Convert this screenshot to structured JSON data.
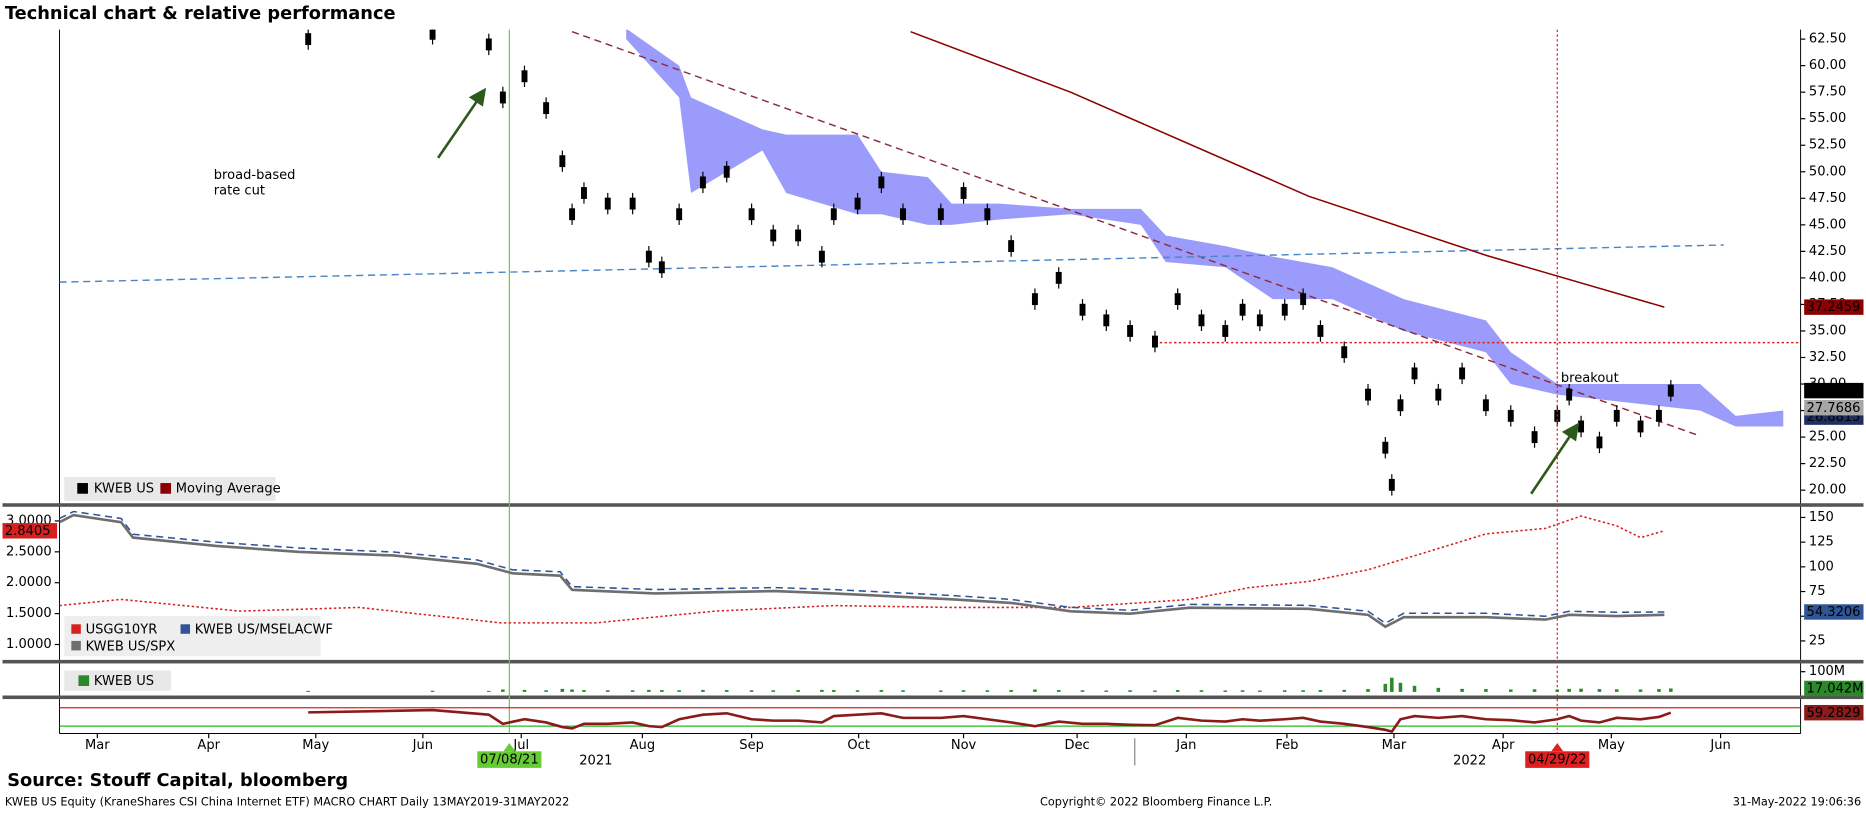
{
  "title": "Technical chart & relative performance",
  "source": "Source: Stouff Capital, bloomberg",
  "footer": [
    "KWEB US Equity (KraneShares CSI China Internet ETF) MACRO CHART  Daily 13MAY2019-31MAY2022",
    "Copyright© 2022 Bloomberg Finance L.P.",
    "31-May-2022 19:06:36"
  ],
  "chart_data": [
    {
      "type": "candlestick",
      "xlim": [
        0,
        16.1
      ],
      "xticks": [
        {
          "value": 0.35,
          "label": "Mar"
        },
        {
          "value": 1.38,
          "label": "Apr"
        },
        {
          "value": 2.37,
          "label": "May"
        },
        {
          "value": 3.36,
          "label": "Jun"
        },
        {
          "value": 4.27,
          "label": "Jul"
        },
        {
          "value": 5.39,
          "label": "Aug"
        },
        {
          "value": 6.4,
          "label": "Sep"
        },
        {
          "value": 7.39,
          "label": "Oct"
        },
        {
          "value": 8.36,
          "label": "Nov"
        },
        {
          "value": 9.41,
          "label": "Dec"
        },
        {
          "value": 10.42,
          "label": "Jan"
        },
        {
          "value": 11.35,
          "label": "Feb"
        },
        {
          "value": 12.34,
          "label": "Mar"
        },
        {
          "value": 13.35,
          "label": "Apr"
        },
        {
          "value": 14.35,
          "label": "May"
        },
        {
          "value": 15.36,
          "label": "Jun"
        }
      ],
      "year_labels": [
        {
          "x": 4.96,
          "label": "2021"
        },
        {
          "x": 13.04,
          "label": "2022"
        }
      ],
      "ylim": [
        18.88,
        63.39
      ],
      "yticks": [
        {
          "value": 20,
          "label": "20.00"
        },
        {
          "value": 22.5,
          "label": "22.50"
        },
        {
          "value": 25,
          "label": "25.00"
        },
        {
          "value": 27.5,
          "label": "27.50"
        },
        {
          "value": 30,
          "label": "30.00"
        },
        {
          "value": 32.5,
          "label": "32.50"
        },
        {
          "value": 35,
          "label": "35.00"
        },
        {
          "value": 37.5,
          "label": "37.50"
        },
        {
          "value": 40,
          "label": "40.00"
        },
        {
          "value": 42.5,
          "label": "42.50"
        },
        {
          "value": 45,
          "label": "45.00"
        },
        {
          "value": 47.5,
          "label": "47.50"
        },
        {
          "value": 50,
          "label": "50.00"
        },
        {
          "value": 52.5,
          "label": "52.50"
        },
        {
          "value": 55,
          "label": "55.00"
        },
        {
          "value": 57.5,
          "label": "57.50"
        },
        {
          "value": 60,
          "label": "60.00"
        },
        {
          "value": 62.5,
          "label": "62.50"
        }
      ],
      "series": [
        {
          "name": "KWEB US",
          "color": "#000000",
          "last_tag": true,
          "x": [
            2.3,
            3.45,
            3.97,
            4.1,
            4.3,
            4.5,
            4.65,
            4.74,
            4.85,
            5.07,
            5.3,
            5.45,
            5.57,
            5.73,
            5.95,
            6.17,
            6.4,
            6.6,
            6.83,
            7.05,
            7.16,
            7.38,
            7.6,
            7.8,
            8.15,
            8.36,
            8.58,
            8.8,
            9.02,
            9.24,
            9.46,
            9.68,
            9.9,
            10.13,
            10.34,
            10.56,
            10.78,
            10.94,
            11.1,
            11.33,
            11.5,
            11.66,
            11.88,
            12.1,
            12.26,
            12.32,
            12.4,
            12.53,
            12.75,
            12.97,
            13.19,
            13.42,
            13.64,
            13.85,
            13.96,
            14.07,
            14.24,
            14.4,
            14.62,
            14.79,
            14.9
          ],
          "values": [
            62.5,
            63,
            62,
            57,
            59,
            56,
            51,
            46,
            48,
            47,
            47,
            42,
            41,
            46,
            49,
            50,
            46,
            44,
            44,
            42,
            46,
            47,
            49,
            46,
            46,
            48,
            46,
            43,
            38,
            40,
            37,
            36,
            35,
            34,
            38,
            36,
            35,
            37,
            36,
            37,
            38,
            35,
            33,
            29,
            24,
            20.5,
            28,
            31,
            29,
            31,
            28,
            27,
            25,
            27,
            29,
            26,
            24.5,
            27,
            26,
            27,
            29.38
          ]
        },
        {
          "name": "Moving Average",
          "color": "#8b0000",
          "last_tag": true,
          "x": [
            7.87,
            9.35,
            11.55,
            13.2,
            14.84
          ],
          "values": [
            63.2,
            57.5,
            47.7,
            42.1,
            37.2459
          ]
        }
      ],
      "cloud": {
        "color": "#9b9bfb",
        "x": [
          5.24,
          5.73,
          5.84,
          6.5,
          6.72,
          7.38,
          7.6,
          8.03,
          8.25,
          8.69,
          9.35,
          10.0,
          10.23,
          10.78,
          11.22,
          11.77,
          12.43,
          13.19,
          13.42,
          13.85,
          15.17,
          15.5,
          15.94
        ],
        "upper": [
          63.5,
          60,
          57,
          54,
          53.5,
          53.5,
          50,
          49.5,
          47,
          47,
          46.5,
          46.5,
          44,
          43,
          42,
          41,
          38,
          36,
          33,
          30,
          30,
          27,
          27.5
        ],
        "lower": [
          62.5,
          57,
          48,
          52,
          48,
          46,
          46,
          45,
          45,
          45.5,
          46,
          45,
          41.5,
          41,
          38,
          38,
          35,
          33,
          30,
          29,
          27.5,
          26,
          26
        ]
      },
      "lines": [
        {
          "color": "#8b2b3a",
          "style": "dashed",
          "x": [
            4.74,
            15.17
          ],
          "y": [
            63.2,
            25.1
          ]
        },
        {
          "color": "#4a86c6",
          "style": "dashed",
          "x": [
            0,
            15.39
          ],
          "y": [
            39.6,
            43.1
          ]
        },
        {
          "color": "#e02020",
          "style": "dotted",
          "x": [
            10.13,
            16.1
          ],
          "y": [
            33.9,
            33.9
          ]
        }
      ],
      "vlines": [
        {
          "x": 4.16,
          "label": "07/08/21",
          "color": "#66cc33",
          "text_color": "#000000",
          "style": "solid"
        },
        {
          "x": 13.85,
          "label": "04/29/22",
          "color": "#e02020",
          "text_color": "#ffffff",
          "style": "dotted"
        }
      ],
      "tags": [
        {
          "value": 26.8815,
          "color": "#1f2f5f",
          "text_color": "#ffffff"
        },
        {
          "value": 27.7686,
          "color": "#a6a6a6",
          "text_color": "#000000"
        }
      ],
      "annotations": [
        "broad-based",
        "rate cut",
        "breakout"
      ]
    },
    {
      "type": "line",
      "ylim": [
        0.77,
        3.21
      ],
      "yticks": [
        {
          "value": 1,
          "label": "1.0000"
        },
        {
          "value": 1.5,
          "label": "1.5000"
        },
        {
          "value": 2,
          "label": "2.0000"
        },
        {
          "value": 2.5,
          "label": "2.5000"
        },
        {
          "value": 3,
          "label": "3.0000"
        }
      ],
      "y2lim": [
        7,
        159.6
      ],
      "y2ticks": [
        25,
        50,
        75,
        100,
        125,
        150
      ],
      "series": [
        {
          "name": "USGG10YR",
          "color": "#d62020",
          "style": "dotted",
          "axis": "y",
          "last_tag": true,
          "x": [
            0,
            0.57,
            1.67,
            2.77,
            4.08,
            4.96,
            6.06,
            7.16,
            8.25,
            9.35,
            10.45,
            11.0,
            11.55,
            12.1,
            12.65,
            13.19,
            13.74,
            14.07,
            14.4,
            14.62,
            14.84
          ],
          "values": [
            1.63,
            1.73,
            1.54,
            1.6,
            1.35,
            1.35,
            1.54,
            1.63,
            1.6,
            1.6,
            1.73,
            1.92,
            2.02,
            2.21,
            2.5,
            2.79,
            2.88,
            3.08,
            2.92,
            2.73,
            2.8405
          ]
        },
        {
          "name": "KWEB US/MSELACWF",
          "color": "#2f5597",
          "style": "dashed",
          "axis": "y2",
          "last_tag": true,
          "x": [
            0,
            0.13,
            0.57,
            0.68,
            1.45,
            2.22,
            3.09,
            3.86,
            4.19,
            4.63,
            4.74,
            5.51,
            6.61,
            7.16,
            8.25,
            8.8,
            9.35,
            9.9,
            10.45,
            11.55,
            12.1,
            12.26,
            12.43,
            13.19,
            13.74,
            13.96,
            14.4,
            14.84
          ],
          "values": [
            149,
            156,
            149,
            133,
            125,
            119,
            115,
            107,
            97,
            95,
            80,
            77,
            79,
            77,
            71,
            67,
            59,
            56,
            62,
            61,
            55,
            43,
            53,
            53,
            50,
            55,
            54,
            54.3206
          ]
        },
        {
          "name": "KWEB US/SPX",
          "color": "#6e6e6e",
          "style": "solid",
          "axis": "y2",
          "x": [
            0,
            0.13,
            0.57,
            0.68,
            1.45,
            2.22,
            3.09,
            3.86,
            4.19,
            4.63,
            4.74,
            5.51,
            6.61,
            7.16,
            8.25,
            8.8,
            9.35,
            9.9,
            10.45,
            11.55,
            12.1,
            12.26,
            12.43,
            13.19,
            13.74,
            13.96,
            14.4,
            14.84
          ],
          "values": [
            145.2,
            152.4,
            145.2,
            129.6,
            121.2,
            115.1,
            111.5,
            103.1,
            93.5,
            91.1,
            76.7,
            73.1,
            75.5,
            73.1,
            67.1,
            63.5,
            55,
            52.6,
            58.7,
            57.5,
            51.4,
            39.4,
            49,
            49,
            46.6,
            51.4,
            50.2,
            51.4
          ]
        }
      ]
    },
    {
      "type": "bar",
      "ylim": [
        -12,
        135
      ],
      "yticks": [
        {
          "value": 100,
          "label": "100M"
        }
      ],
      "series": [
        {
          "name": "KWEB US",
          "color": "#2a8a2a",
          "x": [
            2.3,
            3.45,
            3.97,
            4.1,
            4.3,
            4.5,
            4.65,
            4.74,
            4.85,
            5.07,
            5.3,
            5.45,
            5.57,
            5.73,
            5.95,
            6.17,
            6.4,
            6.6,
            6.83,
            7.05,
            7.16,
            7.38,
            7.6,
            7.8,
            8.15,
            8.36,
            8.58,
            8.8,
            9.02,
            9.24,
            9.46,
            9.68,
            9.9,
            10.13,
            10.34,
            10.56,
            10.78,
            10.94,
            11.1,
            11.33,
            11.5,
            11.66,
            11.88,
            12.1,
            12.26,
            12.32,
            12.4,
            12.53,
            12.75,
            12.97,
            13.19,
            13.42,
            13.64,
            13.85,
            13.96,
            14.07,
            14.24,
            14.4,
            14.62,
            14.79,
            14.9
          ],
          "values": [
            5,
            6,
            5,
            12,
            10,
            8,
            15,
            12,
            9,
            8,
            8,
            10,
            9,
            8,
            10,
            9,
            8,
            8,
            9,
            10,
            9,
            8,
            9,
            8,
            7,
            8,
            8,
            9,
            12,
            9,
            8,
            7,
            8,
            7,
            9,
            8,
            7,
            8,
            7,
            8,
            8,
            9,
            10,
            14,
            40,
            70,
            45,
            30,
            20,
            15,
            14,
            12,
            13,
            12,
            15,
            16,
            14,
            13,
            12,
            14,
            17.042
          ]
        }
      ],
      "tags": [
        {
          "value": 17.042,
          "label": "17.042M",
          "color": "#2a8a2a",
          "text_color": "#ffffff"
        }
      ]
    },
    {
      "type": "line",
      "ylim": [
        14,
        89
      ],
      "levels": [
        {
          "value": 70,
          "color": "#e02020"
        },
        {
          "value": 30,
          "color": "#22bb22"
        }
      ],
      "series": [
        {
          "color": "#8b1a1a",
          "style": "solid",
          "axis": "y",
          "last_tag": true,
          "x": [
            2.3,
            3.45,
            3.97,
            4.1,
            4.3,
            4.5,
            4.65,
            4.74,
            4.85,
            5.07,
            5.3,
            5.45,
            5.57,
            5.73,
            5.95,
            6.17,
            6.4,
            6.6,
            6.83,
            7.05,
            7.16,
            7.38,
            7.6,
            7.8,
            8.15,
            8.36,
            8.58,
            8.8,
            9.02,
            9.24,
            9.46,
            9.68,
            9.9,
            10.13,
            10.34,
            10.56,
            10.78,
            10.94,
            11.1,
            11.33,
            11.5,
            11.66,
            11.88,
            12.1,
            12.26,
            12.32,
            12.4,
            12.53,
            12.75,
            12.97,
            13.19,
            13.42,
            13.64,
            13.85,
            13.96,
            14.07,
            14.24,
            14.4,
            14.62,
            14.79,
            14.9
          ],
          "values": [
            60,
            65,
            55,
            35,
            45,
            38,
            28,
            25,
            35,
            35,
            38,
            30,
            28,
            45,
            55,
            58,
            45,
            42,
            42,
            38,
            52,
            55,
            58,
            48,
            48,
            52,
            45,
            38,
            30,
            40,
            35,
            35,
            33,
            32,
            48,
            42,
            40,
            45,
            42,
            45,
            48,
            40,
            35,
            28,
            22,
            18,
            45,
            52,
            48,
            52,
            45,
            43,
            38,
            45,
            52,
            42,
            38,
            48,
            45,
            50,
            59.2829
          ]
        }
      ]
    }
  ]
}
